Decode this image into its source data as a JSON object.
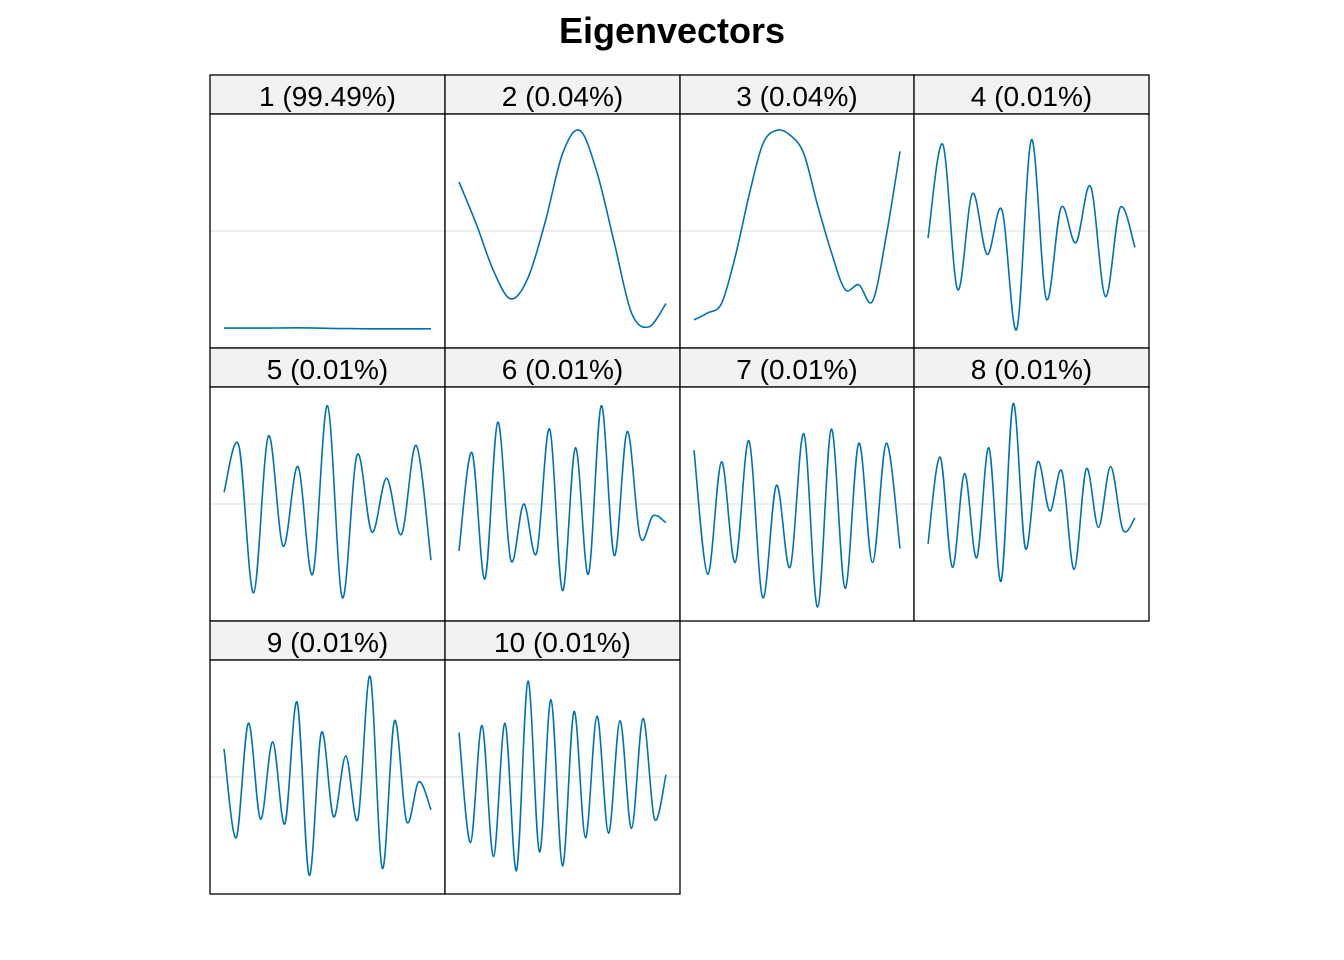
{
  "page": {
    "title": "Eigenvectors"
  },
  "chart_data": {
    "type": "line",
    "title": "Eigenvectors",
    "facet_layout": "4 columns x 3 rows",
    "line_color": "#0072B2",
    "strip_fill": "#F2F2F2",
    "reference_line": "y = 0 (light grey)",
    "axes_labels_shown": false,
    "panels": [
      {
        "label": "1 (99.49%)",
        "values": [
          -0.415,
          -0.415,
          -0.415,
          -0.414,
          -0.414,
          -0.416,
          -0.417,
          -0.418,
          -0.418,
          -0.418,
          -0.418
        ]
      },
      {
        "label": "2 (0.04%)",
        "values": [
          0.21,
          0.03,
          -0.17,
          -0.29,
          -0.2,
          0.04,
          0.33,
          0.43,
          0.25,
          -0.05,
          -0.35,
          -0.41,
          -0.31
        ]
      },
      {
        "label": "3 (0.04%)",
        "values": [
          -0.38,
          -0.35,
          -0.31,
          -0.11,
          0.15,
          0.37,
          0.43,
          0.41,
          0.33,
          0.11,
          -0.09,
          -0.25,
          -0.23,
          -0.3,
          -0.02,
          0.34
        ]
      },
      {
        "label": "4 (0.01%)",
        "values": [
          -0.03,
          0.37,
          -0.25,
          0.16,
          -0.1,
          0.09,
          -0.42,
          0.39,
          -0.29,
          0.1,
          -0.05,
          0.19,
          -0.28,
          0.1,
          -0.07
        ]
      },
      {
        "label": "5 (0.01%)",
        "values": [
          0.05,
          0.25,
          -0.38,
          0.29,
          -0.18,
          0.16,
          -0.3,
          0.42,
          -0.4,
          0.21,
          -0.12,
          0.11,
          -0.13,
          0.25,
          -0.24
        ]
      },
      {
        "label": "6 (0.01%)",
        "values": [
          -0.2,
          0.22,
          -0.32,
          0.35,
          -0.24,
          0.0,
          -0.21,
          0.32,
          -0.37,
          0.24,
          -0.3,
          0.42,
          -0.22,
          0.31,
          -0.14,
          -0.05,
          -0.08
        ]
      },
      {
        "label": "7 (0.01%)",
        "values": [
          0.23,
          -0.3,
          0.18,
          -0.25,
          0.27,
          -0.4,
          0.08,
          -0.27,
          0.3,
          -0.44,
          0.32,
          -0.36,
          0.26,
          -0.25,
          0.26,
          -0.19
        ]
      },
      {
        "label": "8 (0.01%)",
        "values": [
          -0.17,
          0.2,
          -0.27,
          0.13,
          -0.23,
          0.24,
          -0.33,
          0.43,
          -0.19,
          0.18,
          -0.03,
          0.14,
          -0.28,
          0.15,
          -0.1,
          0.16,
          -0.11,
          -0.06
        ]
      },
      {
        "label": "9 (0.01%)",
        "values": [
          0.12,
          -0.26,
          0.23,
          -0.18,
          0.15,
          -0.2,
          0.32,
          -0.42,
          0.19,
          -0.17,
          0.09,
          -0.18,
          0.43,
          -0.39,
          0.24,
          -0.19,
          -0.02,
          -0.14
        ]
      },
      {
        "label": "10 (0.01%)",
        "values": [
          0.19,
          -0.28,
          0.22,
          -0.34,
          0.23,
          -0.4,
          0.41,
          -0.32,
          0.33,
          -0.38,
          0.28,
          -0.26,
          0.26,
          -0.24,
          0.24,
          -0.22,
          0.25,
          -0.18,
          0.01
        ]
      }
    ]
  }
}
